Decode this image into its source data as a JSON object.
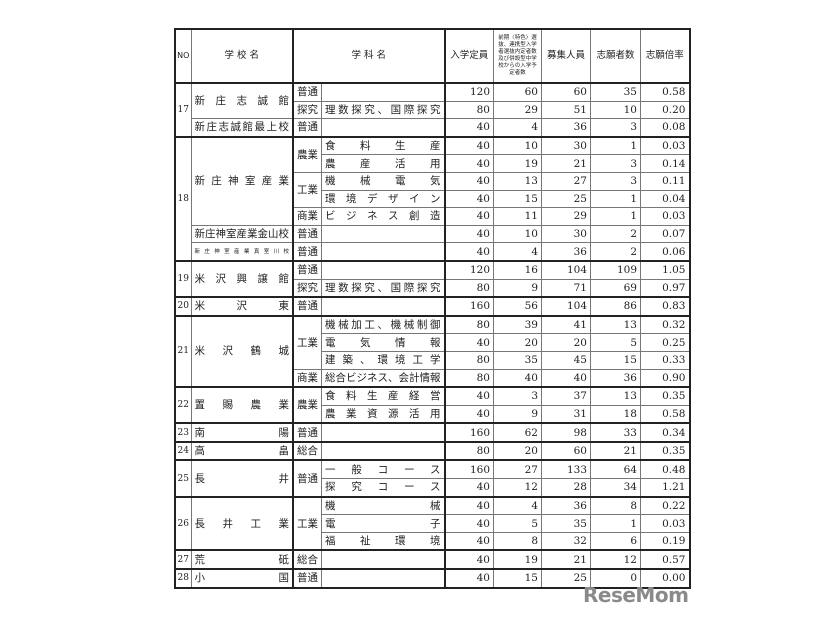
{
  "headers": {
    "no": "NO",
    "school": "学 校 名",
    "subject": "学 科 名",
    "capacity": "入学定員",
    "pre_admitted": "前期〈特色〉選抜、連携型入学者選抜内定者数及び併設型中学校からの入学予定者数",
    "recruit": "募集人員",
    "applicants": "志願者数",
    "ratio": "志願倍率"
  },
  "entries": [
    {
      "no": "17",
      "campuses": [
        {
          "name": "新庄志誠館",
          "depts": [
            {
              "dept": "普通",
              "courses": [
                {
                  "subject": "",
                  "capacity": "120",
                  "pre": "60",
                  "recruit": "60",
                  "applicants": "35",
                  "ratio": "0.58"
                }
              ]
            },
            {
              "dept": "探究",
              "courses": [
                {
                  "subject": "理数探究、国際探究",
                  "capacity": "80",
                  "pre": "29",
                  "recruit": "51",
                  "applicants": "10",
                  "ratio": "0.20"
                }
              ]
            }
          ]
        },
        {
          "name": "新庄志誠館最上校",
          "depts": [
            {
              "dept": "普通",
              "courses": [
                {
                  "subject": "",
                  "capacity": "40",
                  "pre": "4",
                  "recruit": "36",
                  "applicants": "3",
                  "ratio": "0.08"
                }
              ]
            }
          ]
        }
      ]
    },
    {
      "no": "18",
      "campuses": [
        {
          "name": "新庄神室産業",
          "depts": [
            {
              "dept": "農業",
              "courses": [
                {
                  "subject": "食料生産",
                  "capacity": "40",
                  "pre": "10",
                  "recruit": "30",
                  "applicants": "1",
                  "ratio": "0.03"
                },
                {
                  "subject": "農産活用",
                  "capacity": "40",
                  "pre": "19",
                  "recruit": "21",
                  "applicants": "3",
                  "ratio": "0.14"
                }
              ]
            },
            {
              "dept": "工業",
              "courses": [
                {
                  "subject": "機械電気",
                  "capacity": "40",
                  "pre": "13",
                  "recruit": "27",
                  "applicants": "3",
                  "ratio": "0.11"
                },
                {
                  "subject": "環境デザイン",
                  "capacity": "40",
                  "pre": "15",
                  "recruit": "25",
                  "applicants": "1",
                  "ratio": "0.04"
                }
              ]
            },
            {
              "dept": "商業",
              "courses": [
                {
                  "subject": "ビジネス創造",
                  "capacity": "40",
                  "pre": "11",
                  "recruit": "29",
                  "applicants": "1",
                  "ratio": "0.03"
                }
              ]
            }
          ]
        },
        {
          "name": "新庄神室産業金山校",
          "depts": [
            {
              "dept": "普通",
              "courses": [
                {
                  "subject": "",
                  "capacity": "40",
                  "pre": "10",
                  "recruit": "30",
                  "applicants": "2",
                  "ratio": "0.07"
                }
              ]
            }
          ]
        },
        {
          "name": "新庄神室産業真室川校",
          "tiny": true,
          "depts": [
            {
              "dept": "普通",
              "courses": [
                {
                  "subject": "",
                  "capacity": "40",
                  "pre": "4",
                  "recruit": "36",
                  "applicants": "2",
                  "ratio": "0.06"
                }
              ]
            }
          ]
        }
      ]
    },
    {
      "no": "19",
      "campuses": [
        {
          "name": "米沢興譲館",
          "depts": [
            {
              "dept": "普通",
              "courses": [
                {
                  "subject": "",
                  "capacity": "120",
                  "pre": "16",
                  "recruit": "104",
                  "applicants": "109",
                  "ratio": "1.05"
                }
              ]
            },
            {
              "dept": "探究",
              "courses": [
                {
                  "subject": "理数探究、国際探究",
                  "capacity": "80",
                  "pre": "9",
                  "recruit": "71",
                  "applicants": "69",
                  "ratio": "0.97"
                }
              ]
            }
          ]
        }
      ]
    },
    {
      "no": "20",
      "campuses": [
        {
          "name": "米沢東",
          "depts": [
            {
              "dept": "普通",
              "courses": [
                {
                  "subject": "",
                  "capacity": "160",
                  "pre": "56",
                  "recruit": "104",
                  "applicants": "86",
                  "ratio": "0.83"
                }
              ]
            }
          ]
        }
      ]
    },
    {
      "no": "21",
      "campuses": [
        {
          "name": "米沢鶴城",
          "depts": [
            {
              "dept": "工業",
              "courses": [
                {
                  "subject": "機械加工、機械制御",
                  "capacity": "80",
                  "pre": "39",
                  "recruit": "41",
                  "applicants": "13",
                  "ratio": "0.32"
                },
                {
                  "subject": "電気情報",
                  "capacity": "40",
                  "pre": "20",
                  "recruit": "20",
                  "applicants": "5",
                  "ratio": "0.25"
                },
                {
                  "subject": "建築、環境工学",
                  "capacity": "80",
                  "pre": "35",
                  "recruit": "45",
                  "applicants": "15",
                  "ratio": "0.33"
                }
              ]
            },
            {
              "dept": "商業",
              "courses": [
                {
                  "subject": "総合ビジネス、会計情報",
                  "capacity": "80",
                  "pre": "40",
                  "recruit": "40",
                  "applicants": "36",
                  "ratio": "0.90"
                }
              ]
            }
          ]
        }
      ]
    },
    {
      "no": "22",
      "campuses": [
        {
          "name": "置賜農業",
          "depts": [
            {
              "dept": "農業",
              "courses": [
                {
                  "subject": "食料生産経営",
                  "capacity": "40",
                  "pre": "3",
                  "recruit": "37",
                  "applicants": "13",
                  "ratio": "0.35"
                },
                {
                  "subject": "農業資源活用",
                  "capacity": "40",
                  "pre": "9",
                  "recruit": "31",
                  "applicants": "18",
                  "ratio": "0.58"
                }
              ]
            }
          ]
        }
      ]
    },
    {
      "no": "23",
      "campuses": [
        {
          "name": "南陽",
          "depts": [
            {
              "dept": "普通",
              "courses": [
                {
                  "subject": "",
                  "capacity": "160",
                  "pre": "62",
                  "recruit": "98",
                  "applicants": "33",
                  "ratio": "0.34"
                }
              ]
            }
          ]
        }
      ]
    },
    {
      "no": "24",
      "campuses": [
        {
          "name": "高畠",
          "depts": [
            {
              "dept": "総合",
              "courses": [
                {
                  "subject": "",
                  "capacity": "80",
                  "pre": "20",
                  "recruit": "60",
                  "applicants": "21",
                  "ratio": "0.35"
                }
              ]
            }
          ]
        }
      ]
    },
    {
      "no": "25",
      "campuses": [
        {
          "name": "長井",
          "depts": [
            {
              "dept": "普通",
              "courses": [
                {
                  "subject": "一般コース",
                  "capacity": "160",
                  "pre": "27",
                  "recruit": "133",
                  "applicants": "64",
                  "ratio": "0.48"
                },
                {
                  "subject": "探究コース",
                  "capacity": "40",
                  "pre": "12",
                  "recruit": "28",
                  "applicants": "34",
                  "ratio": "1.21"
                }
              ]
            }
          ]
        }
      ]
    },
    {
      "no": "26",
      "campuses": [
        {
          "name": "長井工業",
          "depts": [
            {
              "dept": "工業",
              "courses": [
                {
                  "subject": "機械",
                  "capacity": "40",
                  "pre": "4",
                  "recruit": "36",
                  "applicants": "8",
                  "ratio": "0.22"
                },
                {
                  "subject": "電子",
                  "capacity": "40",
                  "pre": "5",
                  "recruit": "35",
                  "applicants": "1",
                  "ratio": "0.03"
                },
                {
                  "subject": "福祉環境",
                  "capacity": "40",
                  "pre": "8",
                  "recruit": "32",
                  "applicants": "6",
                  "ratio": "0.19"
                }
              ]
            }
          ]
        }
      ]
    },
    {
      "no": "27",
      "campuses": [
        {
          "name": "荒砥",
          "depts": [
            {
              "dept": "総合",
              "courses": [
                {
                  "subject": "",
                  "capacity": "40",
                  "pre": "19",
                  "recruit": "21",
                  "applicants": "12",
                  "ratio": "0.57"
                }
              ]
            }
          ]
        }
      ]
    },
    {
      "no": "28",
      "campuses": [
        {
          "name": "小国",
          "depts": [
            {
              "dept": "普通",
              "courses": [
                {
                  "subject": "",
                  "capacity": "40",
                  "pre": "15",
                  "recruit": "25",
                  "applicants": "0",
                  "ratio": "0.00"
                }
              ]
            }
          ]
        }
      ]
    }
  ],
  "logo": {
    "text": "ReseMom",
    "color": "#8a8a8a"
  }
}
